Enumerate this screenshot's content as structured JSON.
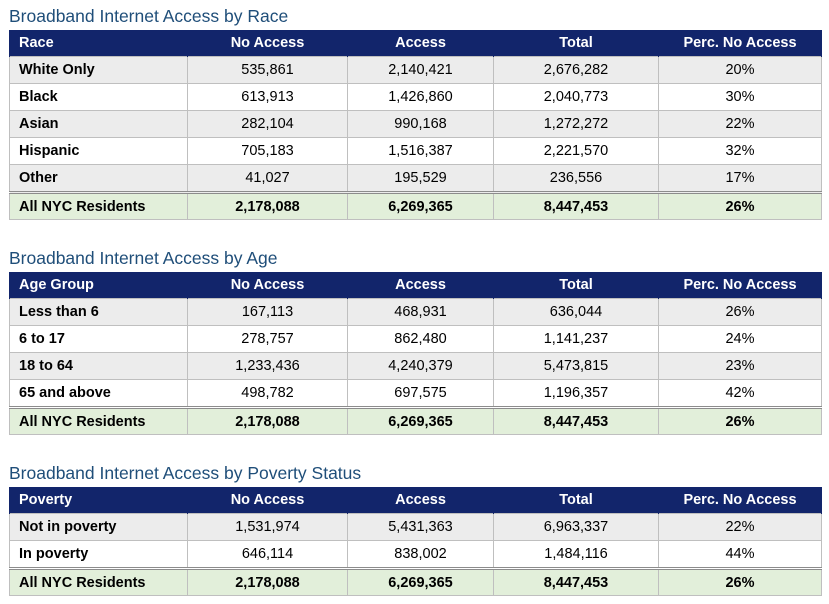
{
  "tables": [
    {
      "title": "Broadband Internet Access by Race",
      "headers": [
        "Race",
        "No Access",
        "Access",
        "Total",
        "Perc. No Access"
      ],
      "rows": [
        [
          "White Only",
          "535,861",
          "2,140,421",
          "2,676,282",
          "20%"
        ],
        [
          "Black",
          "613,913",
          "1,426,860",
          "2,040,773",
          "30%"
        ],
        [
          "Asian",
          "282,104",
          "990,168",
          "1,272,272",
          "22%"
        ],
        [
          "Hispanic",
          "705,183",
          "1,516,387",
          "2,221,570",
          "32%"
        ],
        [
          "Other",
          "41,027",
          "195,529",
          "236,556",
          "17%"
        ]
      ],
      "total": [
        "All NYC Residents",
        "2,178,088",
        "6,269,365",
        "8,447,453",
        "26%"
      ]
    },
    {
      "title": "Broadband Internet Access by Age",
      "headers": [
        "Age Group",
        "No Access",
        "Access",
        "Total",
        "Perc. No Access"
      ],
      "rows": [
        [
          "Less than 6",
          "167,113",
          "468,931",
          "636,044",
          "26%"
        ],
        [
          "6 to 17",
          "278,757",
          "862,480",
          "1,141,237",
          "24%"
        ],
        [
          "18 to 64",
          "1,233,436",
          "4,240,379",
          "5,473,815",
          "23%"
        ],
        [
          "65 and above",
          "498,782",
          "697,575",
          "1,196,357",
          "42%"
        ]
      ],
      "total": [
        "All NYC Residents",
        "2,178,088",
        "6,269,365",
        "8,447,453",
        "26%"
      ]
    },
    {
      "title": "Broadband Internet Access by Poverty Status",
      "headers": [
        "Poverty",
        "No Access",
        "Access",
        "Total",
        "Perc. No Access"
      ],
      "rows": [
        [
          "Not in poverty",
          "1,531,974",
          "5,431,363",
          "6,963,337",
          "22%"
        ],
        [
          "In poverty",
          "646,114",
          "838,002",
          "1,484,116",
          "44%"
        ]
      ],
      "total": [
        "All NYC Residents",
        "2,178,088",
        "6,269,365",
        "8,447,453",
        "26%"
      ]
    }
  ],
  "colors": {
    "title_text": "#1f4e79",
    "header_bg": "#12256b",
    "header_text": "#ffffff",
    "row_alt_bg": "#ececec",
    "total_bg": "#e2efda"
  }
}
